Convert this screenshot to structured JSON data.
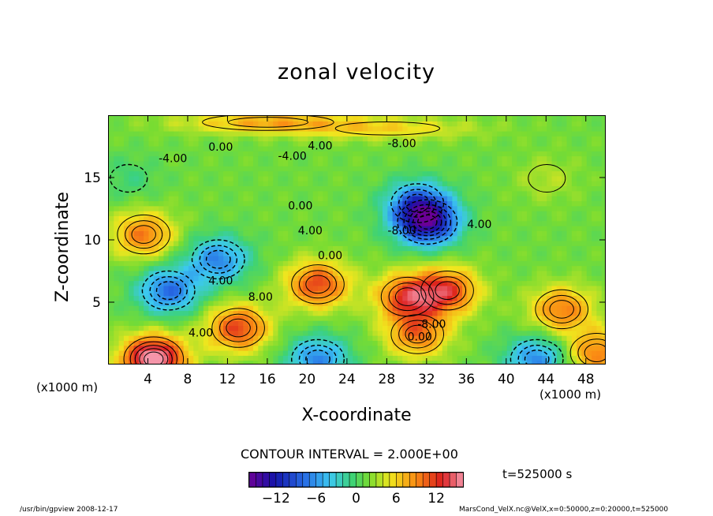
{
  "chart_data": {
    "type": "heatmap",
    "title": "zonal velocity",
    "xlabel": "X-coordinate",
    "ylabel": "Z-coordinate",
    "x_unit_left": "(x1000 m)",
    "x_unit_right": "(x1000 m)",
    "xlim": [
      0,
      50
    ],
    "ylim": [
      0,
      20
    ],
    "x_ticks": [
      4,
      8,
      12,
      16,
      20,
      24,
      28,
      32,
      36,
      40,
      44,
      48
    ],
    "x_tick_labels": [
      "4",
      "8",
      "12",
      "16",
      "20",
      "24",
      "28",
      "32",
      "36",
      "40",
      "44",
      "48"
    ],
    "y_ticks": [
      5,
      10,
      15
    ],
    "y_tick_labels": [
      "5",
      "10",
      "15"
    ],
    "contour_interval_text": "CONTOUR INTERVAL = 2.000E+00",
    "time_text": "t=525000 s",
    "colorbar": {
      "range": [
        -16,
        16
      ],
      "ticks": [
        -12,
        -6,
        0,
        6,
        12
      ],
      "tick_labels": [
        "−12",
        "−6",
        "0",
        "6",
        "12"
      ]
    },
    "contour_labels": [
      "4.00",
      "-4.00",
      "0.00",
      "-4.00",
      "-8.00",
      "0.00",
      "-8.00",
      "4.00",
      "0.00",
      "8.00",
      "4.00",
      "-8.00",
      "4.00",
      "0.00",
      "4.00"
    ],
    "features": [
      {
        "kind": "jet",
        "x": 16,
        "z": 19.5,
        "value": 6
      },
      {
        "kind": "jet",
        "x": 28,
        "z": 19.0,
        "value": 4
      },
      {
        "kind": "core",
        "x": 32,
        "z": 11.5,
        "value": -14
      },
      {
        "kind": "core",
        "x": 31,
        "z": 13,
        "value": -8
      },
      {
        "kind": "core",
        "x": 6,
        "z": 6,
        "value": -9
      },
      {
        "kind": "core",
        "x": 11,
        "z": 8.5,
        "value": -8
      },
      {
        "kind": "core",
        "x": 21,
        "z": 6.5,
        "value": 10
      },
      {
        "kind": "core",
        "x": 13,
        "z": 3,
        "value": 10
      },
      {
        "kind": "core",
        "x": 30,
        "z": 5.5,
        "value": 10
      },
      {
        "kind": "core",
        "x": 34,
        "z": 6,
        "value": 10
      },
      {
        "kind": "core",
        "x": 31,
        "z": 2.5,
        "value": 8
      },
      {
        "kind": "core",
        "x": 3.5,
        "z": 10.5,
        "value": 8
      },
      {
        "kind": "core",
        "x": 45.5,
        "z": 4.5,
        "value": 8
      },
      {
        "kind": "core",
        "x": 4.5,
        "z": 0.5,
        "value": 16
      },
      {
        "kind": "core",
        "x": 21,
        "z": 0.5,
        "value": -8
      },
      {
        "kind": "core",
        "x": 43,
        "z": 0.5,
        "value": -8
      },
      {
        "kind": "core",
        "x": 49,
        "z": 1,
        "value": 8
      },
      {
        "kind": "core",
        "x": 2,
        "z": 15,
        "value": -2
      },
      {
        "kind": "core",
        "x": 44,
        "z": 15,
        "value": 2
      }
    ]
  },
  "footer": {
    "left": "/usr/bin/gpview   2008-12-17",
    "right": "MarsCond_VelX.nc@VelX,x=0:50000,z=0:20000,t=525000"
  }
}
